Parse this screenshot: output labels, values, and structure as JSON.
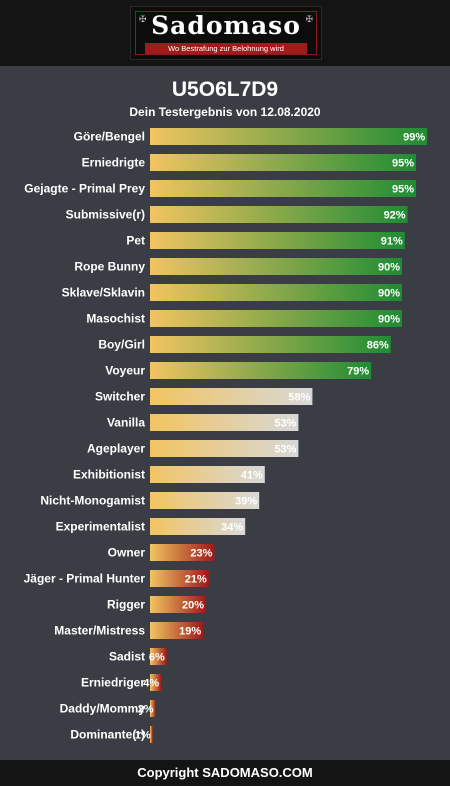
{
  "header": {
    "logo_text": "Sadomaso",
    "logo_tagline": "Wo Bestrafung zur Belohnung wird"
  },
  "result": {
    "title": "U5O6L7D9",
    "subtitle": "Dein Testergebnis von 12.08.2020"
  },
  "colors": {
    "background": "#3a3d44",
    "header_bg": "#141414",
    "bar_start": "#f2c461",
    "high_end": "#1e8c33",
    "mid_end": "#d8d8d8",
    "low_end": "#9c1a1a"
  },
  "chart_data": {
    "type": "bar",
    "orientation": "horizontal",
    "categories": [
      "Göre/Bengel",
      "Erniedrigte",
      "Gejagte - Primal Prey",
      "Submissive(r)",
      "Pet",
      "Rope Bunny",
      "Sklave/Sklavin",
      "Masochist",
      "Boy/Girl",
      "Voyeur",
      "Switcher",
      "Vanilla",
      "Ageplayer",
      "Exhibitionist",
      "Nicht-Monogamist",
      "Experimentalist",
      "Owner",
      "Jäger - Primal Hunter",
      "Rigger",
      "Master/Mistress",
      "Sadist",
      "Erniedriger",
      "Daddy/Mommy",
      "Dominante(r)"
    ],
    "values": [
      99,
      95,
      95,
      92,
      91,
      90,
      90,
      90,
      86,
      79,
      58,
      53,
      53,
      41,
      39,
      34,
      23,
      21,
      20,
      19,
      6,
      4,
      2,
      1
    ],
    "unit": "%",
    "xlim": [
      0,
      100
    ]
  },
  "footer": {
    "copyright": "Copyright SADOMASO.COM"
  }
}
